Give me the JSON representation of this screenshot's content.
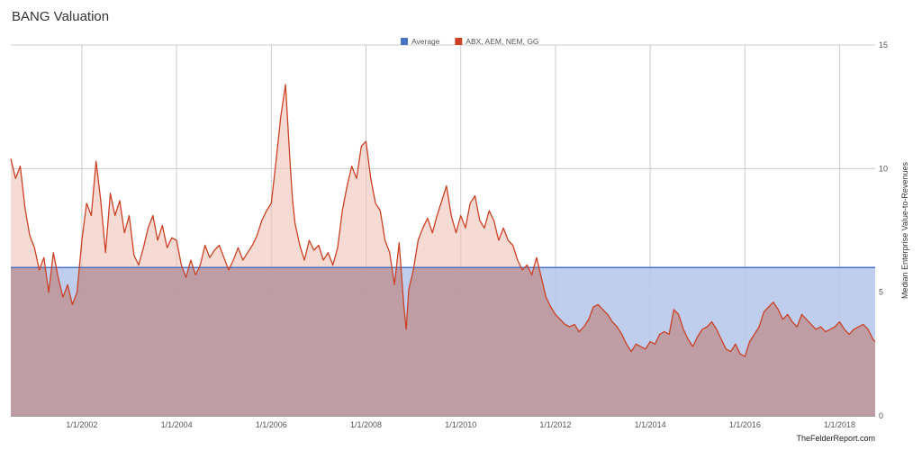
{
  "chart_data": {
    "type": "area",
    "title": "BANG Valuation",
    "ylabel": "Median Enterprise Value-to-Revenues",
    "xlabel": "",
    "ylim": [
      0,
      15
    ],
    "y_ticks": [
      0,
      5,
      10,
      15
    ],
    "x_range": [
      2000.5,
      2018.75
    ],
    "x_ticks": [
      {
        "x": 2002,
        "label": "1/1/2002"
      },
      {
        "x": 2004,
        "label": "1/1/2004"
      },
      {
        "x": 2006,
        "label": "1/1/2006"
      },
      {
        "x": 2008,
        "label": "1/1/2008"
      },
      {
        "x": 2010,
        "label": "1/1/2010"
      },
      {
        "x": 2012,
        "label": "1/1/2012"
      },
      {
        "x": 2014,
        "label": "1/1/2014"
      },
      {
        "x": 2016,
        "label": "1/1/2016"
      },
      {
        "x": 2018,
        "label": "1/1/2018"
      }
    ],
    "grid": true,
    "legend_position": "top",
    "series": [
      {
        "name": "Average",
        "color": "#4a72c4",
        "fill": "#b9c9ec",
        "constant": 6.0
      },
      {
        "name": "ABX, AEM, NEM, GG",
        "color": "#cc4125",
        "fill": "#eec3b6",
        "x": [
          2000.5,
          2000.6,
          2000.7,
          2000.8,
          2000.9,
          2001.0,
          2001.1,
          2001.2,
          2001.3,
          2001.4,
          2001.5,
          2001.6,
          2001.7,
          2001.8,
          2001.9,
          2002.0,
          2002.1,
          2002.2,
          2002.3,
          2002.4,
          2002.5,
          2002.6,
          2002.7,
          2002.8,
          2002.9,
          2003.0,
          2003.1,
          2003.2,
          2003.3,
          2003.4,
          2003.5,
          2003.6,
          2003.7,
          2003.8,
          2003.9,
          2004.0,
          2004.1,
          2004.2,
          2004.3,
          2004.4,
          2004.5,
          2004.6,
          2004.7,
          2004.8,
          2004.9,
          2005.0,
          2005.1,
          2005.2,
          2005.3,
          2005.4,
          2005.5,
          2005.6,
          2005.7,
          2005.8,
          2005.9,
          2006.0,
          2006.1,
          2006.2,
          2006.3,
          2006.4,
          2006.45,
          2006.5,
          2006.6,
          2006.7,
          2006.8,
          2006.9,
          2007.0,
          2007.1,
          2007.2,
          2007.3,
          2007.4,
          2007.5,
          2007.6,
          2007.7,
          2007.8,
          2007.9,
          2008.0,
          2008.1,
          2008.2,
          2008.3,
          2008.4,
          2008.5,
          2008.6,
          2008.7,
          2008.8,
          2008.85,
          2008.9,
          2009.0,
          2009.1,
          2009.2,
          2009.3,
          2009.4,
          2009.5,
          2009.6,
          2009.7,
          2009.8,
          2009.9,
          2010.0,
          2010.1,
          2010.2,
          2010.3,
          2010.4,
          2010.5,
          2010.6,
          2010.7,
          2010.8,
          2010.9,
          2011.0,
          2011.1,
          2011.2,
          2011.3,
          2011.4,
          2011.5,
          2011.6,
          2011.7,
          2011.8,
          2011.9,
          2012.0,
          2012.1,
          2012.2,
          2012.3,
          2012.4,
          2012.5,
          2012.6,
          2012.7,
          2012.8,
          2012.9,
          2013.0,
          2013.1,
          2013.2,
          2013.3,
          2013.4,
          2013.5,
          2013.6,
          2013.7,
          2013.8,
          2013.9,
          2014.0,
          2014.1,
          2014.2,
          2014.3,
          2014.4,
          2014.5,
          2014.6,
          2014.7,
          2014.8,
          2014.9,
          2015.0,
          2015.1,
          2015.2,
          2015.3,
          2015.4,
          2015.5,
          2015.6,
          2015.7,
          2015.8,
          2015.9,
          2016.0,
          2016.1,
          2016.2,
          2016.3,
          2016.4,
          2016.5,
          2016.6,
          2016.7,
          2016.8,
          2016.9,
          2017.0,
          2017.1,
          2017.2,
          2017.3,
          2017.4,
          2017.5,
          2017.6,
          2017.7,
          2017.8,
          2017.9,
          2018.0,
          2018.1,
          2018.2,
          2018.3,
          2018.4,
          2018.5,
          2018.6,
          2018.7,
          2018.75
        ],
        "values": [
          10.4,
          9.6,
          10.1,
          8.4,
          7.3,
          6.8,
          5.9,
          6.4,
          5.0,
          6.6,
          5.6,
          4.8,
          5.3,
          4.5,
          5.0,
          7.1,
          8.6,
          8.1,
          10.3,
          8.7,
          6.6,
          9.0,
          8.1,
          8.7,
          7.4,
          8.1,
          6.5,
          6.1,
          6.8,
          7.6,
          8.1,
          7.1,
          7.7,
          6.8,
          7.2,
          7.1,
          6.1,
          5.6,
          6.3,
          5.7,
          6.1,
          6.9,
          6.4,
          6.7,
          6.9,
          6.4,
          5.9,
          6.3,
          6.8,
          6.3,
          6.6,
          6.9,
          7.3,
          7.9,
          8.3,
          8.6,
          10.3,
          12.1,
          13.4,
          10.1,
          8.7,
          7.8,
          6.9,
          6.3,
          7.1,
          6.7,
          6.9,
          6.3,
          6.6,
          6.1,
          6.8,
          8.3,
          9.3,
          10.1,
          9.6,
          10.9,
          11.1,
          9.6,
          8.6,
          8.3,
          7.1,
          6.6,
          5.3,
          7.0,
          4.4,
          3.5,
          5.1,
          5.9,
          7.1,
          7.6,
          8.0,
          7.4,
          8.1,
          8.7,
          9.3,
          8.1,
          7.4,
          8.1,
          7.6,
          8.6,
          8.9,
          7.9,
          7.6,
          8.3,
          7.9,
          7.1,
          7.6,
          7.1,
          6.9,
          6.3,
          5.9,
          6.1,
          5.7,
          6.4,
          5.6,
          4.8,
          4.4,
          4.1,
          3.9,
          3.7,
          3.6,
          3.7,
          3.4,
          3.6,
          3.9,
          4.4,
          4.5,
          4.3,
          4.1,
          3.8,
          3.6,
          3.3,
          2.9,
          2.6,
          2.9,
          2.8,
          2.7,
          3.0,
          2.9,
          3.3,
          3.4,
          3.3,
          4.3,
          4.1,
          3.5,
          3.1,
          2.8,
          3.2,
          3.5,
          3.6,
          3.8,
          3.5,
          3.1,
          2.7,
          2.6,
          2.9,
          2.5,
          2.4,
          3.0,
          3.3,
          3.6,
          4.2,
          4.4,
          4.6,
          4.3,
          3.9,
          4.1,
          3.8,
          3.6,
          4.1,
          3.9,
          3.7,
          3.5,
          3.6,
          3.4,
          3.5,
          3.6,
          3.8,
          3.5,
          3.3,
          3.5,
          3.6,
          3.7,
          3.5,
          3.1,
          3.0
        ]
      }
    ]
  },
  "source_note": "TheFelderReport.com"
}
